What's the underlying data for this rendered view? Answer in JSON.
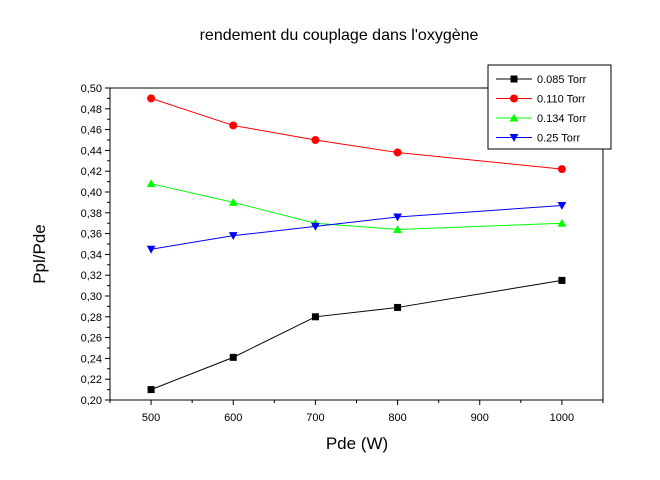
{
  "chart_data": {
    "type": "line",
    "title": "rendement du couplage dans l'oxygène",
    "xlabel": "Pde (W)",
    "ylabel": "Ppl/Pde",
    "xlim": [
      450,
      1050
    ],
    "ylim": [
      0.2,
      0.5
    ],
    "x_ticks": [
      500,
      600,
      700,
      800,
      900,
      1000
    ],
    "x_tick_labels": [
      "500",
      "600",
      "700",
      "800",
      "900",
      "1000"
    ],
    "y_ticks": [
      0.2,
      0.22,
      0.24,
      0.26,
      0.28,
      0.3,
      0.32,
      0.34,
      0.36,
      0.38,
      0.4,
      0.42,
      0.44,
      0.46,
      0.48,
      0.5
    ],
    "y_tick_labels": [
      "0,20",
      "0,22",
      "0,24",
      "0,26",
      "0,28",
      "0,30",
      "0,32",
      "0,34",
      "0,36",
      "0,38",
      "0,40",
      "0,42",
      "0,44",
      "0,46",
      "0,48",
      "0,50"
    ],
    "legend_position": "top-right",
    "grid": false,
    "x": [
      500,
      600,
      700,
      800,
      1000
    ],
    "series": [
      {
        "name": "0.085 Torr",
        "color": "#000000",
        "marker": "square",
        "values": [
          0.21,
          0.241,
          0.28,
          0.289,
          0.315
        ]
      },
      {
        "name": "0.110 Torr",
        "color": "#ff0000",
        "marker": "circle",
        "values": [
          0.49,
          0.464,
          0.45,
          0.438,
          0.422
        ]
      },
      {
        "name": "0.134 Torr",
        "color": "#00ff00",
        "marker": "triangle-up",
        "values": [
          0.408,
          0.39,
          0.37,
          0.364,
          0.37
        ]
      },
      {
        "name": "0.25 Torr",
        "color": "#0000ff",
        "marker": "triangle-down",
        "values": [
          0.345,
          0.358,
          0.367,
          0.376,
          0.387
        ]
      }
    ]
  }
}
